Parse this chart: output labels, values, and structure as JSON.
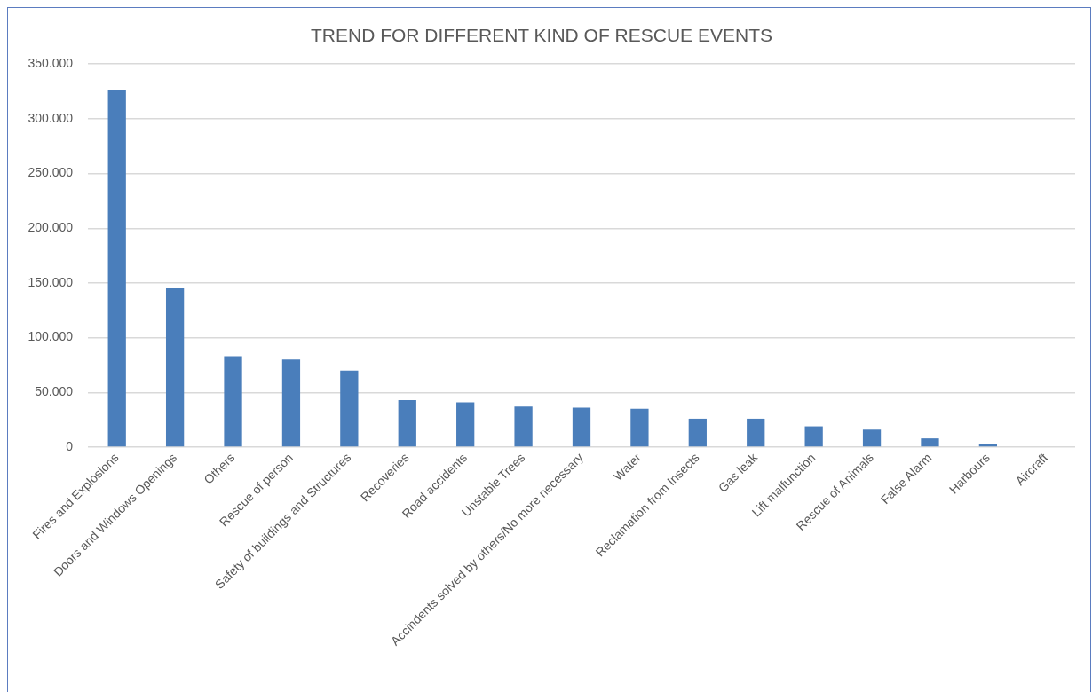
{
  "chart_data": {
    "type": "bar",
    "title": "TREND FOR DIFFERENT KIND OF RESCUE EVENTS",
    "categories": [
      "Fires and Explosions",
      "Doors and Windows Openings",
      "Others",
      "Rescue of person",
      "Safety of buildings and Structures",
      "Recoveries",
      "Road accidents",
      "Unstable Trees",
      "Accindents solved by others/No more necessary",
      "Water",
      "Reclamation from Insects",
      "Gas leak",
      "Lift malfunction",
      "Rescue of Animals",
      "False Alarm",
      "Harbours",
      "Aircraft"
    ],
    "values": [
      326000,
      145000,
      83000,
      80000,
      70000,
      43000,
      41000,
      37000,
      36000,
      35000,
      26000,
      26000,
      19000,
      16000,
      8000,
      3000,
      0
    ],
    "color": "#4a7ebb",
    "ylim": [
      0,
      350000
    ],
    "yticks": [
      0,
      {
        "value": 50000,
        "label": "50.000"
      },
      {
        "value": 100000,
        "label": "100.000"
      },
      {
        "value": 150000,
        "label": "150.000"
      },
      {
        "value": 200000,
        "label": "200.000"
      },
      {
        "value": 250000,
        "label": "250.000"
      },
      {
        "value": 300000,
        "label": "300.000"
      },
      {
        "value": 350000,
        "label": "350.000"
      }
    ],
    "grid": "y"
  }
}
